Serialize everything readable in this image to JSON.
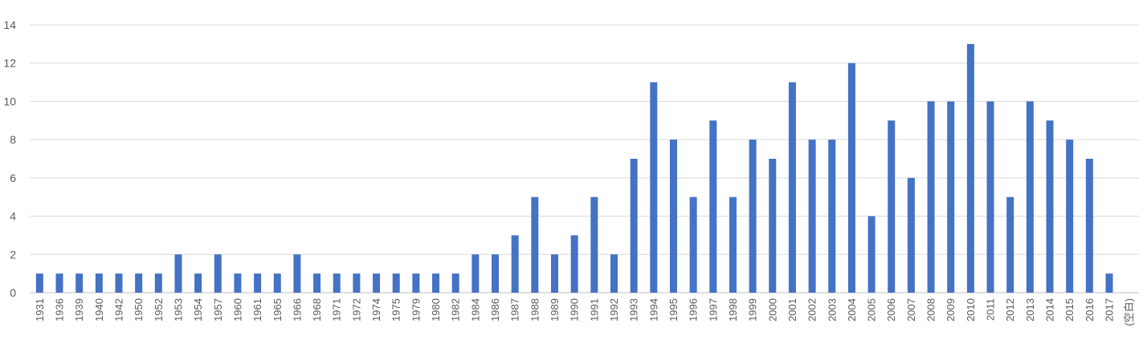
{
  "chart_data": {
    "type": "bar",
    "title": "",
    "xlabel": "",
    "ylabel": "",
    "ylim": [
      0,
      14
    ],
    "yticks": [
      0,
      2,
      4,
      6,
      8,
      10,
      12,
      14
    ],
    "grid": true,
    "legend": "none",
    "bar_color": "#4472c4",
    "categories": [
      "1931",
      "1936",
      "1939",
      "1940",
      "1942",
      "1950",
      "1952",
      "1953",
      "1954",
      "1957",
      "1960",
      "1961",
      "1965",
      "1966",
      "1968",
      "1971",
      "1972",
      "1974",
      "1975",
      "1979",
      "1980",
      "1982",
      "1984",
      "1986",
      "1987",
      "1988",
      "1989",
      "1990",
      "1991",
      "1992",
      "1993",
      "1994",
      "1995",
      "1996",
      "1997",
      "1998",
      "1999",
      "2000",
      "2001",
      "2002",
      "2003",
      "2004",
      "2005",
      "2006",
      "2007",
      "2008",
      "2009",
      "2010",
      "2011",
      "2012",
      "2013",
      "2014",
      "2015",
      "2016",
      "2017",
      "(空白)"
    ],
    "values": [
      1,
      1,
      1,
      1,
      1,
      1,
      1,
      2,
      1,
      2,
      1,
      1,
      1,
      2,
      1,
      1,
      1,
      1,
      1,
      1,
      1,
      1,
      2,
      2,
      3,
      5,
      2,
      3,
      5,
      2,
      7,
      11,
      8,
      5,
      9,
      5,
      8,
      7,
      11,
      8,
      8,
      12,
      4,
      9,
      6,
      10,
      10,
      13,
      10,
      5,
      10,
      9,
      8,
      7,
      1,
      0
    ]
  }
}
